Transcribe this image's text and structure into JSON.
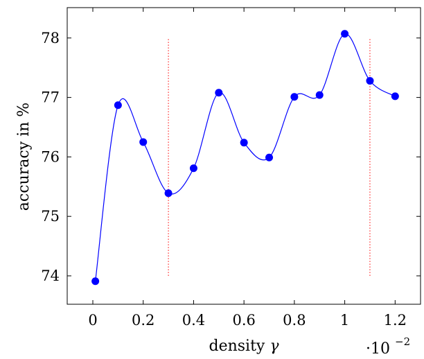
{
  "chart_data": {
    "type": "line",
    "title": "",
    "xlabel": "density",
    "xlabel_symbol": "γ",
    "ylabel": "accuracy in %",
    "x_scale_note": {
      "base": "·10",
      "exponent": "−2"
    },
    "xlim": [
      -0.1,
      1.3
    ],
    "ylim": [
      73.5,
      78.5
    ],
    "xticks": [
      0,
      0.2,
      0.4,
      0.6,
      0.8,
      1,
      1.2
    ],
    "xtick_labels": [
      "0",
      "0.2",
      "0.4",
      "0.6",
      "0.8",
      "1",
      "1.2"
    ],
    "yticks": [
      74,
      75,
      76,
      77,
      78
    ],
    "ytick_labels": [
      "74",
      "75",
      "76",
      "77",
      "78"
    ],
    "grid": false,
    "series": [
      {
        "color": "#0000ff",
        "marker": "circle",
        "smooth": true,
        "x": [
          0.01,
          0.1,
          0.2,
          0.3,
          0.4,
          0.5,
          0.6,
          0.7,
          0.8,
          0.9,
          1.0,
          1.1,
          1.2
        ],
        "y": [
          73.91,
          76.87,
          76.25,
          75.39,
          75.81,
          77.08,
          76.24,
          75.99,
          77.01,
          77.04,
          78.07,
          77.28,
          77.02
        ]
      }
    ],
    "vlines": [
      {
        "x": 0.3,
        "y_range": [
          74.0,
          78.0
        ],
        "color": "#ff0000",
        "style": "dotted"
      },
      {
        "x": 1.1,
        "y_range": [
          74.0,
          78.0
        ],
        "color": "#ff0000",
        "style": "dotted"
      }
    ]
  }
}
